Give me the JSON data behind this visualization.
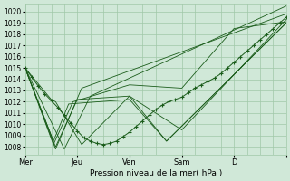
{
  "xlabel": "Pression niveau de la mer( hPa )",
  "xlim": [
    0,
    120
  ],
  "ylim": [
    1007.3,
    1020.7
  ],
  "yticks": [
    1008,
    1009,
    1010,
    1011,
    1012,
    1013,
    1014,
    1015,
    1016,
    1017,
    1018,
    1019,
    1020
  ],
  "xtick_positions": [
    0,
    24,
    48,
    72,
    96,
    120
  ],
  "xtick_labels": [
    "Mer",
    "Jeu",
    "Ven",
    "Sam",
    "D",
    ""
  ],
  "bg_color": "#d0e8d8",
  "grid_color": "#a0c8a8",
  "line_color": "#1a5c1a",
  "dot_color": "#1a5c1a",
  "series": [
    {
      "waypoints": [
        [
          0,
          1015.0
        ],
        [
          18,
          1007.8
        ],
        [
          30,
          1012.5
        ],
        [
          120,
          1020.5
        ]
      ]
    },
    {
      "waypoints": [
        [
          0,
          1015.0
        ],
        [
          14,
          1007.8
        ],
        [
          26,
          1013.2
        ],
        [
          120,
          1019.8
        ]
      ]
    },
    {
      "waypoints": [
        [
          0,
          1015.0
        ],
        [
          14,
          1008.0
        ],
        [
          24,
          1012.2
        ],
        [
          48,
          1012.5
        ],
        [
          72,
          1009.5
        ],
        [
          120,
          1019.3
        ]
      ]
    },
    {
      "waypoints": [
        [
          0,
          1015.0
        ],
        [
          13,
          1008.2
        ],
        [
          22,
          1012.0
        ],
        [
          48,
          1013.5
        ],
        [
          72,
          1013.2
        ],
        [
          96,
          1018.5
        ],
        [
          120,
          1019.1
        ]
      ]
    },
    {
      "waypoints": [
        [
          0,
          1015.0
        ],
        [
          13,
          1008.5
        ],
        [
          20,
          1011.8
        ],
        [
          48,
          1012.2
        ],
        [
          65,
          1008.5
        ],
        [
          120,
          1019.0
        ]
      ]
    },
    {
      "waypoints": [
        [
          0,
          1015.0
        ],
        [
          12,
          1012.2
        ],
        [
          14,
          1012.0
        ],
        [
          26,
          1008.2
        ],
        [
          48,
          1012.5
        ],
        [
          65,
          1008.5
        ],
        [
          120,
          1019.0
        ]
      ]
    }
  ],
  "dotted_series": {
    "x": [
      0,
      3,
      6,
      9,
      12,
      15,
      18,
      21,
      24,
      27,
      30,
      33,
      36,
      39,
      42,
      45,
      48,
      51,
      54,
      57,
      60,
      63,
      66,
      69,
      72,
      75,
      78,
      81,
      84,
      87,
      90,
      93,
      96,
      99,
      102,
      105,
      108,
      111,
      114,
      117,
      120
    ],
    "y": [
      1015.0,
      1014.2,
      1013.4,
      1012.7,
      1012.1,
      1011.5,
      1010.8,
      1010.1,
      1009.4,
      1008.8,
      1008.5,
      1008.3,
      1008.2,
      1008.3,
      1008.5,
      1008.9,
      1009.3,
      1009.8,
      1010.3,
      1010.8,
      1011.3,
      1011.7,
      1012.0,
      1012.2,
      1012.4,
      1012.8,
      1013.2,
      1013.5,
      1013.8,
      1014.1,
      1014.5,
      1015.0,
      1015.5,
      1016.0,
      1016.5,
      1017.0,
      1017.5,
      1018.0,
      1018.5,
      1019.0,
      1019.5
    ]
  }
}
